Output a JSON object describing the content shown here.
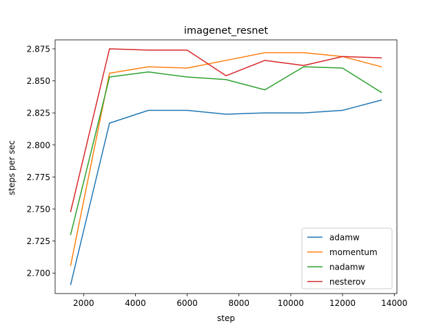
{
  "chart_data": {
    "type": "line",
    "title": "imagenet_resnet",
    "xlabel": "step",
    "ylabel": "steps per sec",
    "xlim": [
      900,
      14100
    ],
    "ylim": [
      2.684,
      2.882
    ],
    "xticks": [
      2000,
      4000,
      6000,
      8000,
      10000,
      12000,
      14000
    ],
    "yticks": [
      2.7,
      2.725,
      2.75,
      2.775,
      2.8,
      2.825,
      2.85,
      2.875
    ],
    "xtick_labels": [
      "2000",
      "4000",
      "6000",
      "8000",
      "10000",
      "12000",
      "14000"
    ],
    "ytick_labels": [
      "2.700",
      "2.725",
      "2.750",
      "2.775",
      "2.800",
      "2.825",
      "2.850",
      "2.875"
    ],
    "grid": false,
    "legend_position": "lower-right",
    "x": [
      1500,
      3000,
      4500,
      6000,
      7500,
      9000,
      10500,
      12000,
      13500
    ],
    "series": [
      {
        "name": "adamw",
        "color": "#1f77b4",
        "values": [
          2.691,
          2.817,
          2.827,
          2.827,
          2.824,
          2.825,
          2.825,
          2.827,
          2.835
        ]
      },
      {
        "name": "momentum",
        "color": "#ff7f0e",
        "values": [
          2.706,
          2.856,
          2.861,
          2.86,
          2.866,
          2.872,
          2.872,
          2.869,
          2.861
        ]
      },
      {
        "name": "nadamw",
        "color": "#2ca02c",
        "values": [
          2.73,
          2.853,
          2.857,
          2.853,
          2.851,
          2.843,
          2.861,
          2.86,
          2.841
        ]
      },
      {
        "name": "nesterov",
        "color": "#d62728",
        "values": [
          2.748,
          2.875,
          2.874,
          2.874,
          2.854,
          2.866,
          2.862,
          2.869,
          2.868
        ]
      }
    ]
  }
}
